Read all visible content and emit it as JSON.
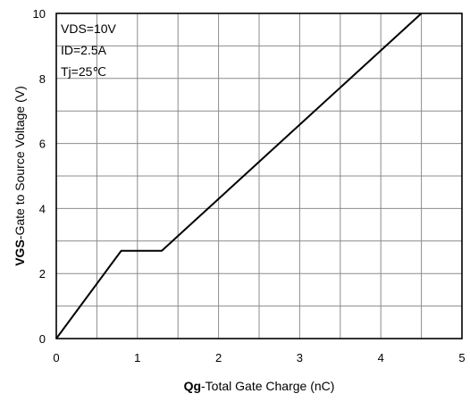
{
  "chart_data": {
    "type": "line",
    "xlabel_bold": "Qg",
    "xlabel_rest": "-Total Gate Charge (nC)",
    "ylabel_bold": "VGS",
    "ylabel_rest": "-Gate to Source Voltage (V)",
    "xlim": [
      0,
      5
    ],
    "ylim": [
      0,
      10
    ],
    "x_ticks": [
      0,
      1,
      2,
      3,
      4,
      5
    ],
    "y_ticks": [
      0,
      2,
      4,
      6,
      8,
      10
    ],
    "x_tick_labels": [
      "0",
      "1",
      "2",
      "3",
      "4",
      "5"
    ],
    "y_tick_labels": [
      "0",
      "2",
      "4",
      "6",
      "8",
      "10"
    ],
    "x_minor_step": 0.5,
    "y_minor_step": 1,
    "grid": true,
    "annotations": [
      "VDS=10V",
      "ID=2.5A",
      "Tj=25℃"
    ],
    "annotation_placement": "top-left",
    "series": [
      {
        "x": [
          0,
          0.8,
          1.3,
          4.5
        ],
        "y": [
          0,
          2.7,
          2.7,
          10
        ]
      }
    ],
    "line_color": "#000000",
    "grid_color": "#8c8c8c"
  }
}
